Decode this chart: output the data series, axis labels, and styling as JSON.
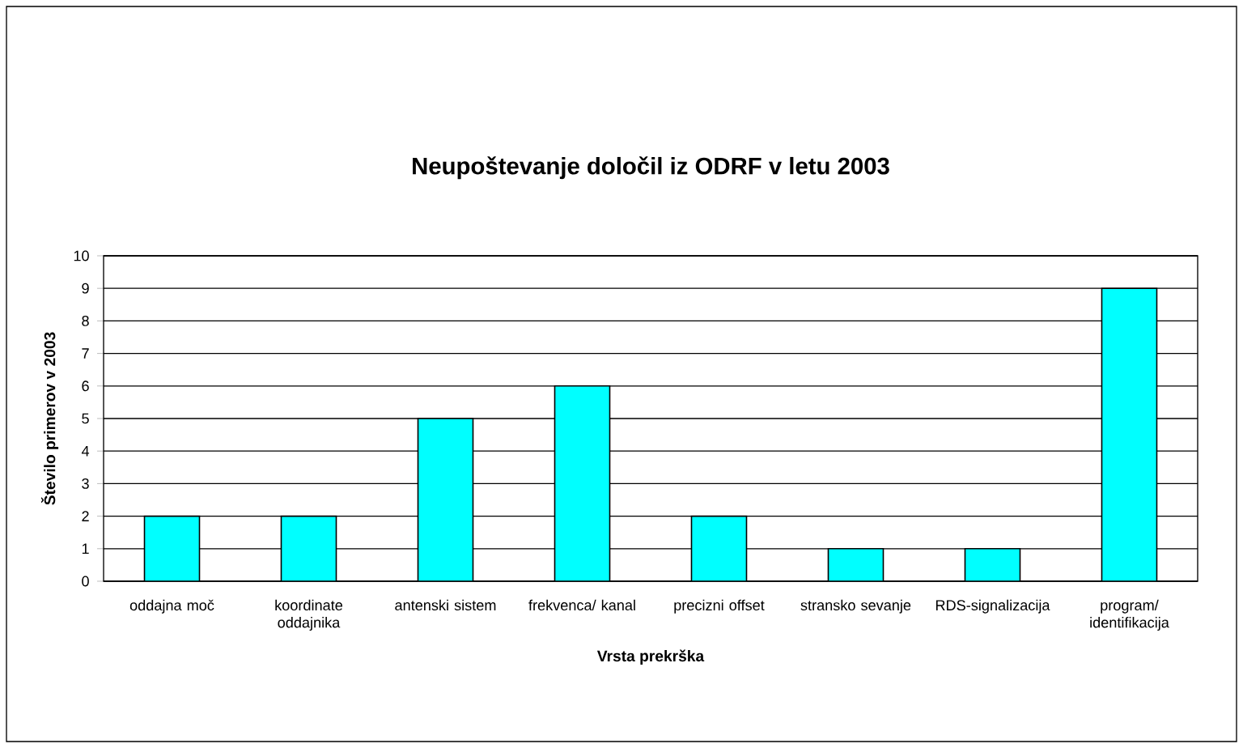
{
  "chart_data": {
    "type": "bar",
    "title": "Neupoštevanje določil iz ODRF v letu 2003",
    "xlabel": "Vrsta prekrška",
    "ylabel": "Število primerov v 2003",
    "categories": [
      "oddajna moč",
      "koordinate oddajnika",
      "antenski sistem",
      "frekvenca/ kanal",
      "precizni offset",
      "stransko sevanje",
      "RDS-signalizacija",
      "program/ identifikacija"
    ],
    "values": [
      2,
      2,
      5,
      6,
      2,
      1,
      1,
      9
    ],
    "color": "#00ffff",
    "ylim": [
      0,
      10
    ],
    "yticks": [
      0,
      1,
      2,
      3,
      4,
      5,
      6,
      7,
      8,
      9,
      10
    ],
    "grid": "y"
  }
}
